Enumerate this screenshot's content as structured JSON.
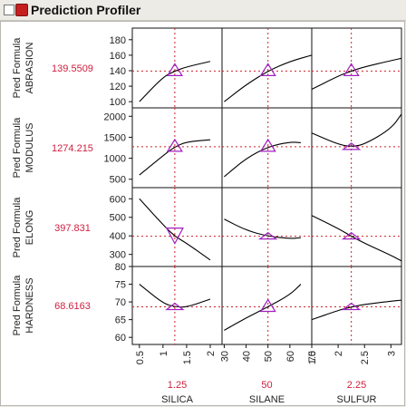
{
  "header": {
    "title": "Prediction Profiler",
    "menu_icon": "red-triangle-menu-icon"
  },
  "colors": {
    "value_text": "#d02040",
    "reference_line": "#d0202a",
    "marker": "#a020c0",
    "curve": "#000000"
  },
  "factors": [
    {
      "name": "SILICA",
      "current": "1.25",
      "current_value": 1.25,
      "range": [
        0.35,
        2.25
      ],
      "ticks": [
        "0.5",
        "1",
        "1.5",
        "2"
      ],
      "tick_values": [
        0.5,
        1,
        1.5,
        2
      ]
    },
    {
      "name": "SILANE",
      "current": "50",
      "current_value": 50,
      "range": [
        29,
        70
      ],
      "ticks": [
        "30",
        "40",
        "50",
        "60",
        "70"
      ],
      "tick_values": [
        30,
        40,
        50,
        60,
        70
      ]
    },
    {
      "name": "SULFUR",
      "current": "2.25",
      "current_value": 2.25,
      "range": [
        1.5,
        3.2
      ],
      "ticks": [
        "1.5",
        "2",
        "2.5",
        "3"
      ],
      "tick_values": [
        1.5,
        2,
        2.5,
        3
      ]
    }
  ],
  "responses": [
    {
      "label_line1": "Pred Formula",
      "label_line2": "ABRASION",
      "current": "139.5509",
      "current_value": 139.5509,
      "range": [
        92,
        195
      ],
      "ticks": [
        "100",
        "120",
        "140",
        "160",
        "180"
      ],
      "tick_values": [
        100,
        120,
        140,
        160,
        180
      ]
    },
    {
      "label_line1": "Pred Formula",
      "label_line2": "MODULUS",
      "current": "1274.215",
      "current_value": 1274.215,
      "range": [
        300,
        2200
      ],
      "ticks": [
        "500",
        "1000",
        "1500",
        "2000"
      ],
      "tick_values": [
        500,
        1000,
        1500,
        2000
      ]
    },
    {
      "label_line1": "Pred Formula",
      "label_line2": "ELONG",
      "current": "397.831",
      "current_value": 397.831,
      "range": [
        230,
        660
      ],
      "ticks": [
        "300",
        "400",
        "500",
        "600"
      ],
      "tick_values": [
        300,
        400,
        500,
        600
      ]
    },
    {
      "label_line1": "Pred Formula",
      "label_line2": "HARDNESS",
      "current": "68.6163",
      "current_value": 68.6163,
      "range": [
        58,
        80
      ],
      "ticks": [
        "60",
        "65",
        "70",
        "75",
        "80"
      ],
      "tick_values": [
        60,
        65,
        70,
        75,
        80
      ]
    }
  ],
  "chart_data": {
    "type": "line",
    "title": "Prediction Profiler",
    "description_note": "",
    "curves": [
      [
        {
          "x": [
            0.5,
            1.0,
            1.25,
            1.5,
            2.0
          ],
          "y": [
            100,
            132,
            139.55,
            145,
            152
          ]
        },
        {
          "x": [
            30,
            40,
            50,
            60,
            70
          ],
          "y": [
            100,
            122,
            139.55,
            152,
            160
          ]
        },
        {
          "x": [
            1.5,
            2.0,
            2.25,
            2.5,
            3.0,
            3.2
          ],
          "y": [
            116,
            133,
            139.55,
            145,
            153,
            156
          ]
        }
      ],
      [
        {
          "x": [
            0.5,
            1.0,
            1.25,
            1.5,
            2.0
          ],
          "y": [
            600,
            1060,
            1274.2,
            1390,
            1440
          ]
        },
        {
          "x": [
            30,
            40,
            50,
            60,
            65
          ],
          "y": [
            560,
            1000,
            1274.2,
            1390,
            1370
          ]
        },
        {
          "x": [
            1.5,
            2.0,
            2.25,
            2.5,
            3.0,
            3.2
          ],
          "y": [
            1600,
            1330,
            1274.2,
            1330,
            1700,
            2050
          ]
        }
      ],
      [
        {
          "x": [
            0.5,
            1.0,
            1.25,
            1.5,
            2.0
          ],
          "y": [
            600,
            460,
            397.8,
            360,
            270
          ]
        },
        {
          "x": [
            30,
            40,
            50,
            60,
            65
          ],
          "y": [
            490,
            430,
            397.8,
            385,
            390
          ]
        },
        {
          "x": [
            1.5,
            2.0,
            2.25,
            2.5,
            3.0,
            3.2
          ],
          "y": [
            510,
            440,
            397.8,
            360,
            295,
            265
          ]
        }
      ],
      [
        {
          "x": [
            0.5,
            1.0,
            1.25,
            1.5,
            2.0
          ],
          "y": [
            75,
            69.6,
            68.6,
            68.5,
            70.8
          ]
        },
        {
          "x": [
            30,
            40,
            50,
            60,
            65
          ],
          "y": [
            62,
            65.5,
            68.6,
            72,
            75
          ]
        },
        {
          "x": [
            1.5,
            2.0,
            2.25,
            2.5,
            3.0,
            3.2
          ],
          "y": [
            65,
            67.6,
            68.6,
            69.3,
            70.2,
            70.5
          ]
        }
      ]
    ],
    "marker_variants": [
      [
        "up",
        "up",
        "up"
      ],
      [
        "up",
        "up",
        "flat"
      ],
      [
        "down",
        "flat",
        "flat"
      ],
      [
        "flat",
        "up",
        "flat"
      ]
    ],
    "grid": false,
    "legend": "none"
  }
}
